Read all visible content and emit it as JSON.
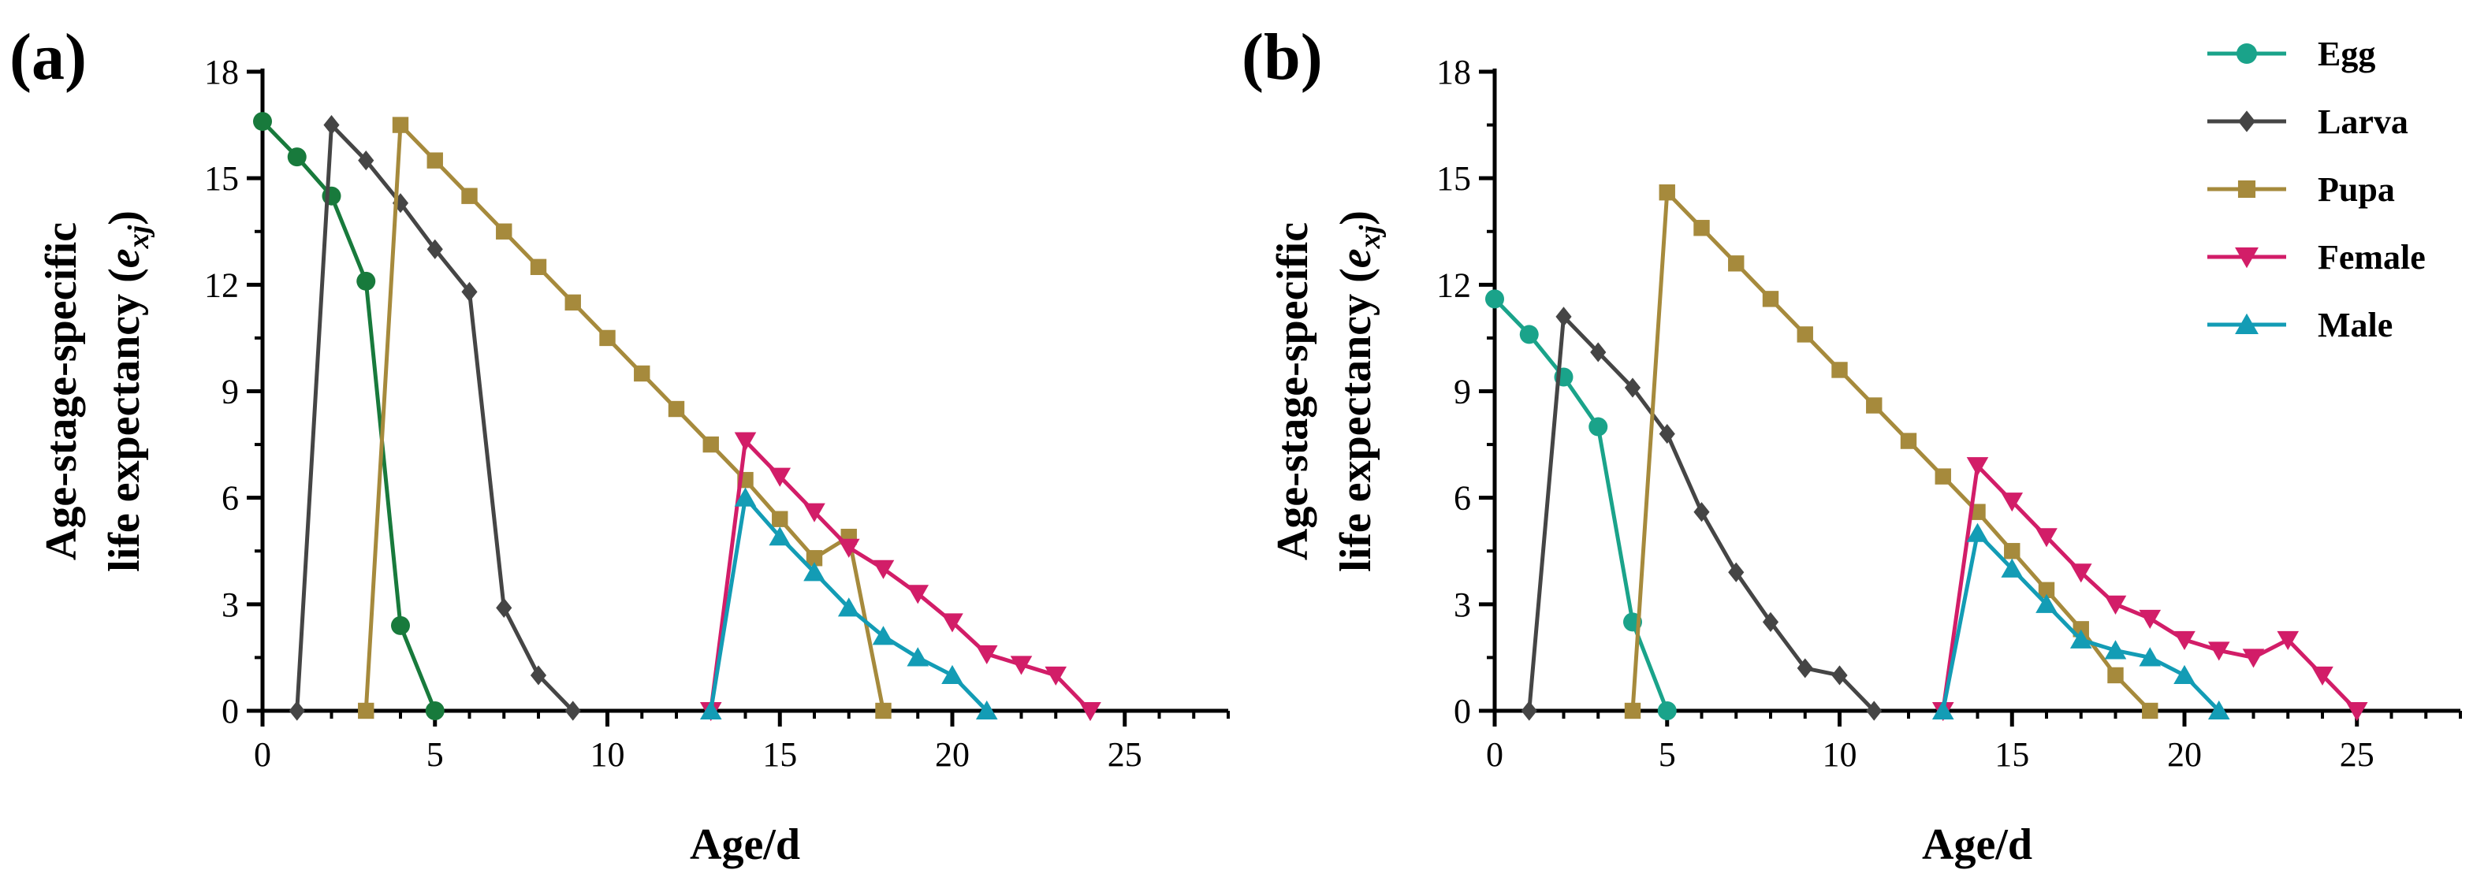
{
  "colors": {
    "Egg": "#1aa38a",
    "Egg_a": "#187a3c",
    "Larva": "#454545",
    "Pupa": "#a68a3c",
    "Female": "#d21d68",
    "Male": "#139cb5"
  },
  "chart_data": [
    {
      "type": "line",
      "panel": "(a)",
      "xlabel": "Age/d",
      "ylabel_main": "Age-stage-specific",
      "ylabel_line2": "life expectancy (",
      "ylabel_symbol": "e",
      "ylabel_sub": "xj",
      "ylabel_close": ")",
      "xlim": [
        0,
        28
      ],
      "ylim": [
        0,
        18
      ],
      "xticks": [
        0,
        5,
        10,
        15,
        20,
        25
      ],
      "yticks": [
        0,
        3,
        6,
        9,
        12,
        15,
        18
      ],
      "series": [
        {
          "name": "Egg",
          "marker": "circle",
          "color_key": "Egg_a",
          "x": [
            0,
            1,
            2,
            3,
            4,
            5
          ],
          "y": [
            16.6,
            15.6,
            14.5,
            12.1,
            2.4,
            0
          ]
        },
        {
          "name": "Larva",
          "marker": "diamond",
          "color_key": "Larva",
          "x": [
            1,
            2,
            3,
            4,
            5,
            6,
            7,
            8,
            9
          ],
          "y": [
            0,
            16.5,
            15.5,
            14.3,
            13.0,
            11.8,
            2.9,
            1.0,
            0
          ]
        },
        {
          "name": "Pupa",
          "marker": "square",
          "color_key": "Pupa",
          "x": [
            3,
            4,
            5,
            6,
            7,
            8,
            9,
            10,
            11,
            12,
            13,
            14,
            15,
            16,
            17,
            18
          ],
          "y": [
            0,
            16.5,
            15.5,
            14.5,
            13.5,
            12.5,
            11.5,
            10.5,
            9.5,
            8.5,
            7.5,
            6.5,
            5.4,
            4.3,
            4.9,
            0
          ]
        },
        {
          "name": "Female",
          "marker": "triangle-down",
          "color_key": "Female",
          "x": [
            13,
            14,
            15,
            16,
            17,
            18,
            19,
            20,
            21,
            22,
            23,
            24
          ],
          "y": [
            0,
            7.6,
            6.6,
            5.6,
            4.6,
            4.0,
            3.3,
            2.5,
            1.6,
            1.3,
            1.0,
            0
          ]
        },
        {
          "name": "Male",
          "marker": "triangle-up",
          "color_key": "Male",
          "x": [
            13,
            14,
            15,
            16,
            17,
            18,
            19,
            20,
            21
          ],
          "y": [
            0,
            6.0,
            4.9,
            3.9,
            2.9,
            2.1,
            1.5,
            1.0,
            0
          ]
        }
      ]
    },
    {
      "type": "line",
      "panel": "(b)",
      "xlabel": "Age/d",
      "ylabel_main": "Age-stage-specific",
      "ylabel_line2": "life expectancy (",
      "ylabel_symbol": "e",
      "ylabel_sub": "xj",
      "ylabel_close": ")",
      "xlim": [
        0,
        28
      ],
      "ylim": [
        0,
        18
      ],
      "xticks": [
        0,
        5,
        10,
        15,
        20,
        25
      ],
      "yticks": [
        0,
        3,
        6,
        9,
        12,
        15,
        18
      ],
      "legend_position": "top-right",
      "series": [
        {
          "name": "Egg",
          "marker": "circle",
          "color_key": "Egg",
          "x": [
            0,
            1,
            2,
            3,
            4,
            5
          ],
          "y": [
            11.6,
            10.6,
            9.4,
            8.0,
            2.5,
            0
          ]
        },
        {
          "name": "Larva",
          "marker": "diamond",
          "color_key": "Larva",
          "x": [
            1,
            2,
            3,
            4,
            5,
            6,
            7,
            8,
            9,
            10,
            11
          ],
          "y": [
            0,
            11.1,
            10.1,
            9.1,
            7.8,
            5.6,
            3.9,
            2.5,
            1.2,
            1.0,
            0
          ]
        },
        {
          "name": "Pupa",
          "marker": "square",
          "color_key": "Pupa",
          "x": [
            4,
            5,
            6,
            7,
            8,
            9,
            10,
            11,
            12,
            13,
            14,
            15,
            16,
            17,
            18,
            19
          ],
          "y": [
            0,
            14.6,
            13.6,
            12.6,
            11.6,
            10.6,
            9.6,
            8.6,
            7.6,
            6.6,
            5.6,
            4.5,
            3.4,
            2.3,
            1.0,
            0
          ]
        },
        {
          "name": "Female",
          "marker": "triangle-down",
          "color_key": "Female",
          "x": [
            13,
            14,
            15,
            16,
            17,
            18,
            19,
            20,
            21,
            22,
            23,
            24,
            25
          ],
          "y": [
            0,
            6.9,
            5.9,
            4.9,
            3.9,
            3.0,
            2.6,
            2.0,
            1.7,
            1.5,
            2.0,
            1.0,
            0
          ]
        },
        {
          "name": "Male",
          "marker": "triangle-up",
          "color_key": "Male",
          "x": [
            13,
            14,
            15,
            16,
            17,
            18,
            19,
            20,
            21
          ],
          "y": [
            0,
            5.0,
            4.0,
            3.0,
            2.0,
            1.7,
            1.5,
            1.0,
            0
          ]
        }
      ]
    }
  ]
}
